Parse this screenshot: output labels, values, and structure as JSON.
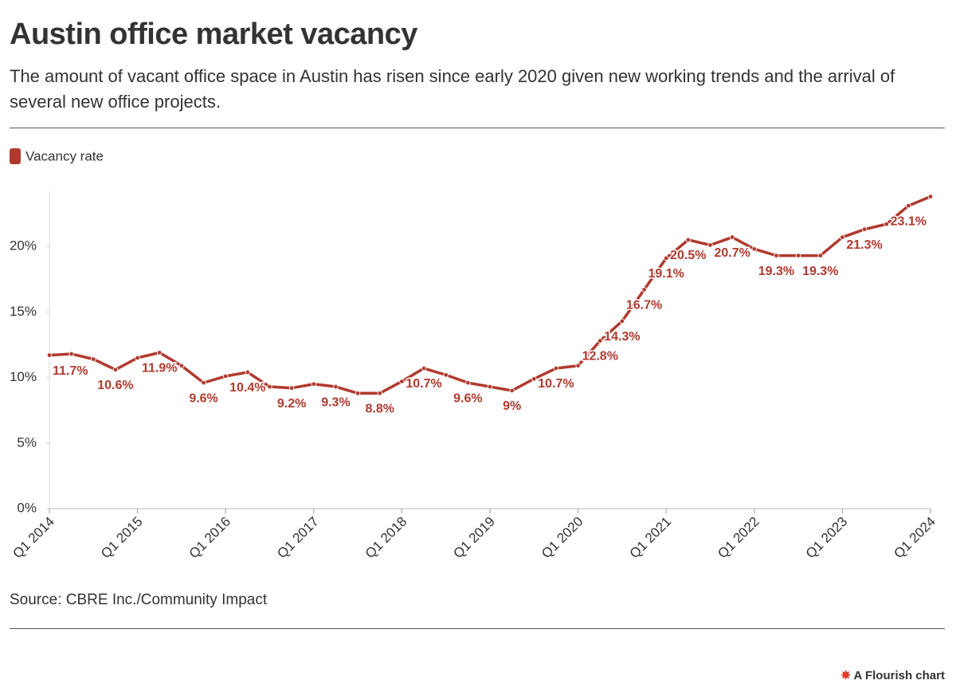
{
  "chart_data": {
    "type": "line",
    "title": "Austin office market vacancy",
    "subtitle": "The amount of vacant office space in Austin has risen since early 2020 given new working trends and the arrival of several new office projects.",
    "source": "Source: CBRE Inc./Community Impact",
    "credit": "A Flourish chart",
    "categories": [
      "Q1 2014",
      null,
      null,
      null,
      "Q1 2015",
      null,
      null,
      null,
      "Q1 2016",
      null,
      null,
      null,
      "Q1 2017",
      null,
      null,
      null,
      "Q1 2018",
      null,
      null,
      null,
      "Q1 2019",
      null,
      null,
      null,
      "Q1 2020",
      null,
      null,
      null,
      "Q1 2021",
      null,
      null,
      null,
      "Q1 2022",
      null,
      null,
      null,
      "Q1 2023",
      null,
      null,
      null,
      "Q1 2024"
    ],
    "series": [
      {
        "name": "Vacancy rate",
        "color": "#b03a2e",
        "values": [
          11.7,
          11.8,
          11.4,
          10.6,
          11.5,
          11.9,
          10.9,
          9.6,
          10.1,
          10.4,
          9.3,
          9.2,
          9.5,
          9.3,
          8.8,
          8.8,
          9.7,
          10.7,
          10.2,
          9.6,
          9.3,
          9,
          9.9,
          10.7,
          10.9,
          12.8,
          14.3,
          16.7,
          19.1,
          20.5,
          20.1,
          20.7,
          19.8,
          19.3,
          19.3,
          19.3,
          20.7,
          21.3,
          21.7,
          23.1,
          23.8
        ],
        "value_labels": [
          "11.7%",
          null,
          null,
          "10.6%",
          null,
          "11.9%",
          null,
          "9.6%",
          null,
          "10.4%",
          null,
          "9.2%",
          null,
          "9.3%",
          null,
          "8.8%",
          null,
          "10.7%",
          null,
          "9.6%",
          null,
          "9%",
          null,
          "10.7%",
          null,
          "12.8%",
          "14.3%",
          "16.7%",
          "19.1%",
          "20.5%",
          null,
          "20.7%",
          null,
          "19.3%",
          null,
          "19.3%",
          null,
          "21.3%",
          null,
          "23.1%",
          null
        ]
      }
    ],
    "ylim": [
      0,
      24.2
    ],
    "yticks": [
      {
        "value": 0,
        "label": "0%"
      },
      {
        "value": 5,
        "label": "5%"
      },
      {
        "value": 10,
        "label": "10%"
      },
      {
        "value": 15,
        "label": "15%"
      },
      {
        "value": 20,
        "label": "20%"
      }
    ],
    "grid": false
  }
}
